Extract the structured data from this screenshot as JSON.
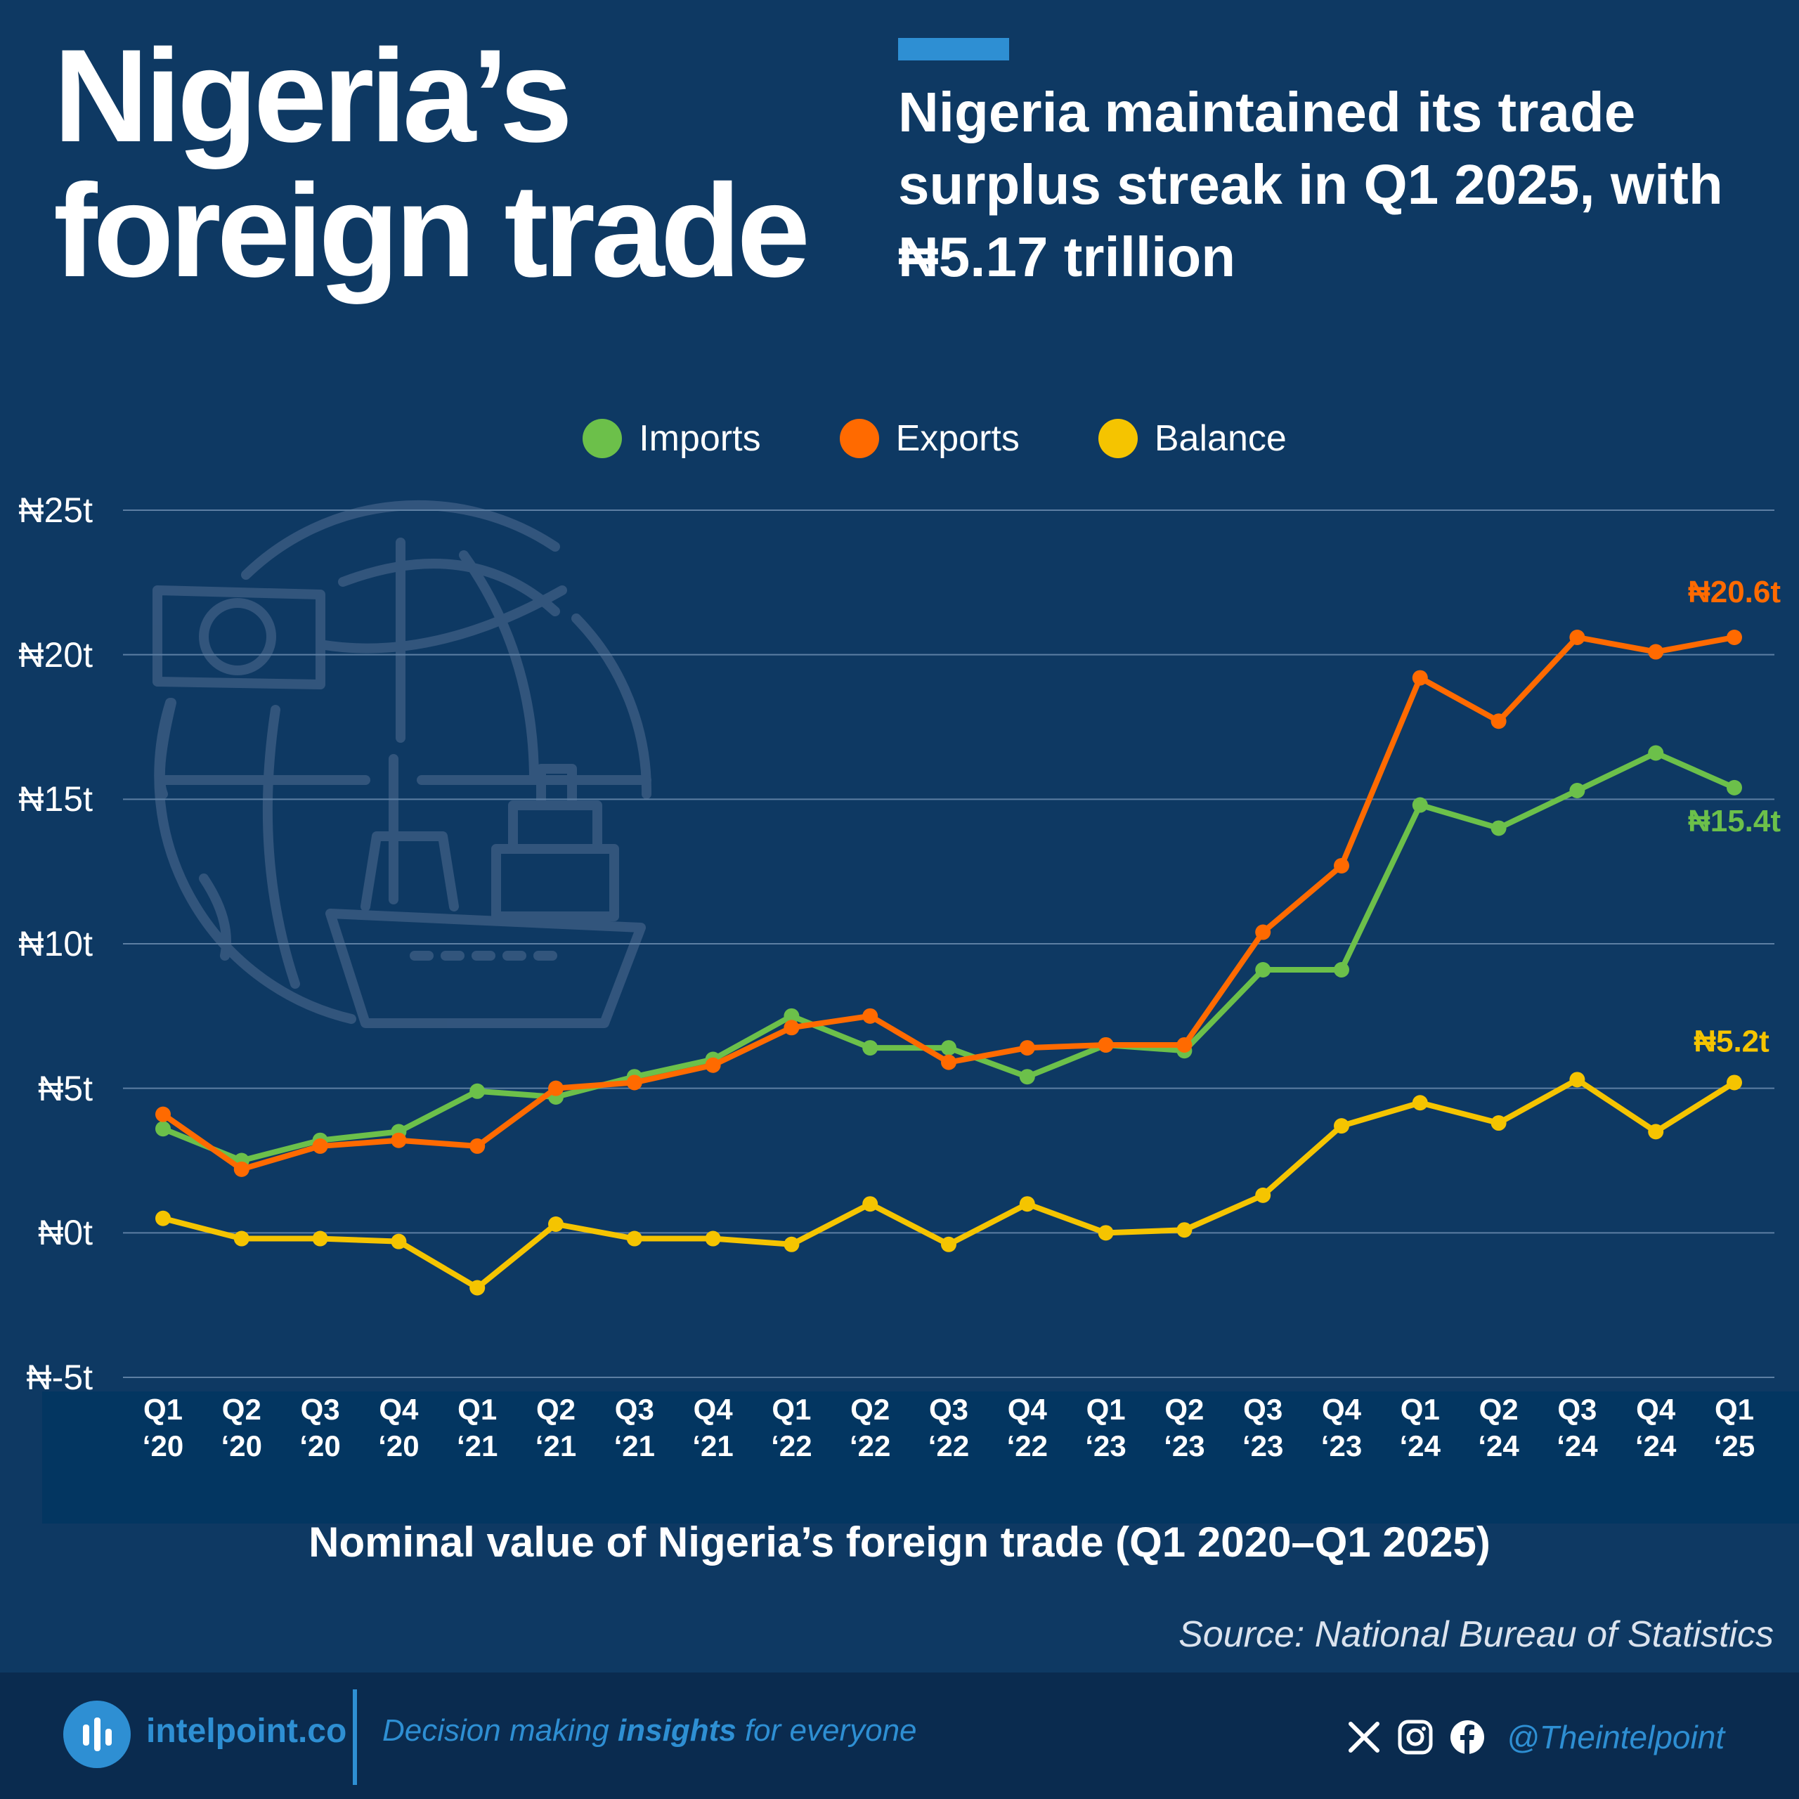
{
  "header": {
    "title": "Nigeria’s\nforeign trade",
    "subtitle": "Nigeria maintained its trade surplus streak in Q1 2025, with ₦5.17 trillion"
  },
  "legend": [
    {
      "label": "Imports",
      "color": "#6cc04a"
    },
    {
      "label": "Exports",
      "color": "#ff6a00"
    },
    {
      "label": "Balance",
      "color": "#f5c400"
    }
  ],
  "chart_data": {
    "type": "line",
    "ylim": [
      -5,
      25
    ],
    "y_ticks": [
      "₦25t",
      "₦20t",
      "₦15t",
      "₦10t",
      "₦5t",
      "₦0t",
      "₦-5t"
    ],
    "y_tick_values": [
      25,
      20,
      15,
      10,
      5,
      0,
      -5
    ],
    "categories": [
      "Q1\n‘20",
      "Q2\n‘20",
      "Q3\n‘20",
      "Q4\n‘20",
      "Q1\n‘21",
      "Q2\n‘21",
      "Q3\n‘21",
      "Q4\n‘21",
      "Q1\n‘22",
      "Q2\n‘22",
      "Q3\n‘22",
      "Q4\n‘22",
      "Q1\n‘23",
      "Q2\n‘23",
      "Q3\n‘23",
      "Q4\n‘23",
      "Q1\n‘24",
      "Q2\n‘24",
      "Q3\n‘24",
      "Q4\n‘24",
      "Q1\n‘25"
    ],
    "series": [
      {
        "name": "Imports",
        "color": "#6cc04a",
        "values": [
          3.6,
          2.5,
          3.2,
          3.5,
          4.9,
          4.7,
          5.4,
          6.0,
          7.5,
          6.4,
          6.4,
          5.4,
          6.5,
          6.3,
          9.1,
          9.1,
          14.8,
          14.0,
          15.3,
          16.6,
          15.4
        ],
        "end_label": "₦15.4t"
      },
      {
        "name": "Exports",
        "color": "#ff6a00",
        "values": [
          4.1,
          2.2,
          3.0,
          3.2,
          3.0,
          5.0,
          5.2,
          5.8,
          7.1,
          7.5,
          5.9,
          6.4,
          6.5,
          6.5,
          10.4,
          12.7,
          19.2,
          17.7,
          20.6,
          20.1,
          20.6
        ],
        "end_label": "₦20.6t"
      },
      {
        "name": "Balance",
        "color": "#f5c400",
        "values": [
          0.5,
          -0.2,
          -0.2,
          -0.3,
          -1.9,
          0.3,
          -0.2,
          -0.2,
          -0.4,
          1.0,
          -0.4,
          1.0,
          0.0,
          0.1,
          1.3,
          3.7,
          4.5,
          3.8,
          5.3,
          3.5,
          5.2
        ],
        "end_label": "₦5.2t"
      }
    ],
    "grid": true
  },
  "caption": "Nominal value of Nigeria’s foreign trade (Q1 2020–Q1 2025)",
  "source": "Source: National Bureau of Statistics",
  "footer": {
    "logo_text": "intelpoint.co",
    "tagline_pre": "Decision making ",
    "tagline_bold": "insights",
    "tagline_post": " for everyone",
    "handle": "@Theintelpoint",
    "icons": [
      "x-icon",
      "instagram-icon",
      "facebook-icon"
    ]
  }
}
